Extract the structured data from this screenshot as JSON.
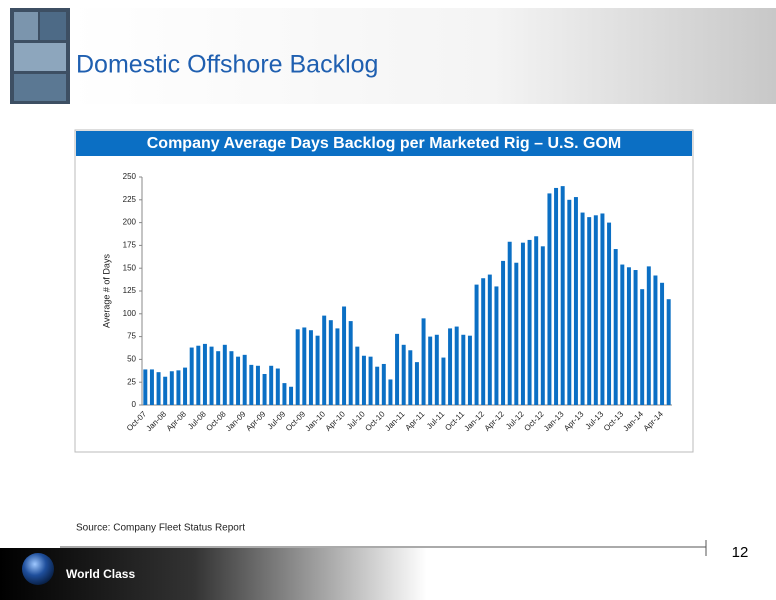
{
  "header": {
    "title": "Domestic Offshore Backlog"
  },
  "chart_data": {
    "type": "bar",
    "title": "Company Average Days Backlog per Marketed Rig  – U.S. GOM",
    "y_label": "Average # of Days",
    "categories": [
      "Oct-07",
      null,
      null,
      "Jan-08",
      null,
      null,
      "Apr-08",
      null,
      null,
      "Jul-08",
      null,
      null,
      "Oct-08",
      null,
      null,
      "Jan-09",
      null,
      null,
      "Apr-09",
      null,
      null,
      "Jul-09",
      null,
      null,
      "Oct-09",
      null,
      null,
      "Jan-10",
      null,
      null,
      "Apr-10",
      null,
      null,
      "Jul-10",
      null,
      null,
      "Oct-10",
      null,
      null,
      "Jan-11",
      null,
      null,
      "Apr-11",
      null,
      null,
      "Jul-11",
      null,
      null,
      "Oct-11",
      null,
      null,
      "Jan-12",
      null,
      null,
      "Apr-12",
      null,
      null,
      "Jul-12",
      null,
      null,
      "Oct-12",
      null,
      null,
      "Jan-13",
      null,
      null,
      "Apr-13",
      null,
      null,
      "Jul-13",
      null,
      null,
      "Oct-13",
      null,
      null,
      "Jan-14",
      null,
      null,
      "Apr-14",
      null
    ],
    "values": [
      39,
      39,
      36,
      31,
      37,
      38,
      41,
      63,
      65,
      67,
      64,
      59,
      66,
      59,
      53,
      55,
      44,
      43,
      34,
      43,
      40,
      24,
      20,
      83,
      85,
      82,
      76,
      98,
      93,
      84,
      108,
      92,
      64,
      54,
      53,
      42,
      45,
      28,
      78,
      66,
      60,
      47,
      95,
      75,
      77,
      52,
      84,
      86,
      77,
      76,
      132,
      139,
      143,
      130,
      158,
      179,
      156,
      178,
      181,
      185,
      174,
      232,
      238,
      240,
      225,
      228,
      211,
      206,
      208,
      210,
      200,
      171,
      154,
      151,
      148,
      127,
      152,
      142,
      134,
      116
    ],
    "color": "#0b6fc4",
    "ylim": [
      0,
      250
    ],
    "yticks": [
      0,
      25,
      50,
      75,
      100,
      125,
      150,
      175,
      200,
      225,
      250
    ],
    "grid": false
  },
  "source": "Source: Company Fleet Status Report",
  "page_number": "12",
  "footer": {
    "text": "World Class"
  }
}
